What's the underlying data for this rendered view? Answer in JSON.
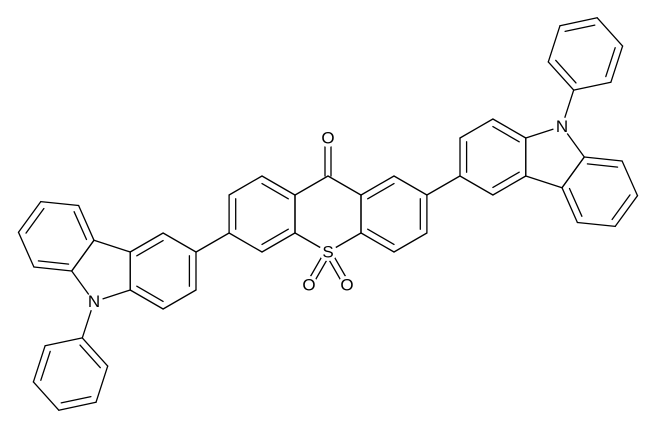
{
  "atoms": [
    "O",
    "S",
    "O",
    "O",
    "N",
    "N"
  ]
}
